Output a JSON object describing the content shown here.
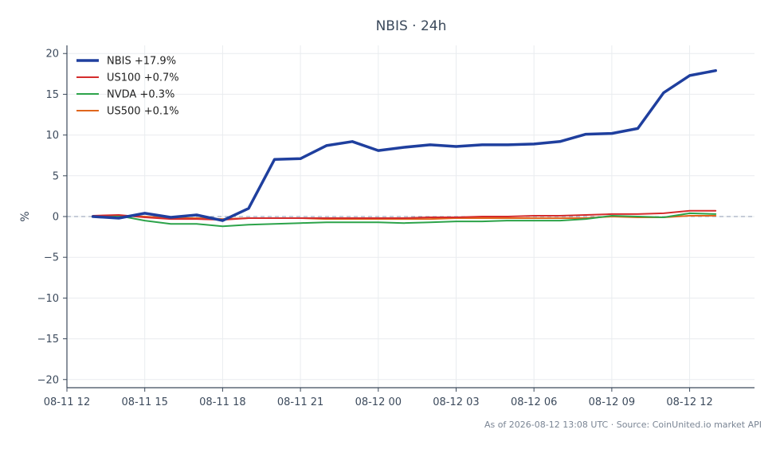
{
  "chart_data": {
    "type": "line",
    "title": "NBIS · 24h",
    "ylabel": "%",
    "xlabel": "",
    "ylim": [
      -21,
      21
    ],
    "yticks": [
      -20,
      -15,
      -10,
      -5,
      0,
      5,
      10,
      15,
      20
    ],
    "xlim": [
      0,
      26.5
    ],
    "xticks": [
      {
        "pos": 0,
        "label": "08-11 12"
      },
      {
        "pos": 3,
        "label": "08-11 15"
      },
      {
        "pos": 6,
        "label": "08-11 18"
      },
      {
        "pos": 9,
        "label": "08-11 21"
      },
      {
        "pos": 12,
        "label": "08-12 00"
      },
      {
        "pos": 15,
        "label": "08-12 03"
      },
      {
        "pos": 18,
        "label": "08-12 06"
      },
      {
        "pos": 21,
        "label": "08-12 09"
      },
      {
        "pos": 24,
        "label": "08-12 12"
      }
    ],
    "x": [
      1,
      2,
      3,
      4,
      5,
      6,
      7,
      8,
      9,
      10,
      11,
      12,
      13,
      14,
      15,
      16,
      17,
      18,
      19,
      20,
      21,
      22,
      23,
      24,
      25
    ],
    "grid": true,
    "zero_line": true,
    "legend_position": "top-left",
    "series": [
      {
        "name": "NBIS +17.9%",
        "color": "#1f3f9e",
        "width": 3.5,
        "values": [
          0.0,
          -0.2,
          0.4,
          -0.1,
          0.2,
          -0.5,
          1.0,
          7.0,
          7.1,
          8.7,
          9.2,
          8.1,
          8.5,
          8.8,
          8.6,
          8.8,
          8.8,
          8.9,
          9.2,
          10.1,
          10.2,
          10.8,
          15.2,
          17.3,
          17.9
        ]
      },
      {
        "name": "US100 +0.7%",
        "color": "#d42c2c",
        "width": 2,
        "values": [
          0.1,
          0.2,
          -0.1,
          -0.3,
          -0.3,
          -0.4,
          -0.2,
          -0.2,
          -0.2,
          -0.2,
          -0.2,
          -0.2,
          -0.2,
          -0.1,
          -0.1,
          0.0,
          0.0,
          0.1,
          0.1,
          0.2,
          0.3,
          0.3,
          0.4,
          0.7,
          0.7
        ]
      },
      {
        "name": "NVDA +0.3%",
        "color": "#2ca34a",
        "width": 2,
        "values": [
          0.0,
          0.1,
          -0.5,
          -0.9,
          -0.9,
          -1.2,
          -1.0,
          -0.9,
          -0.8,
          -0.7,
          -0.7,
          -0.7,
          -0.8,
          -0.7,
          -0.6,
          -0.6,
          -0.5,
          -0.5,
          -0.5,
          -0.3,
          0.1,
          0.0,
          -0.1,
          0.4,
          0.3
        ]
      },
      {
        "name": "US500 +0.1%",
        "color": "#e0661c",
        "width": 2,
        "values": [
          0.1,
          0.1,
          0.0,
          -0.2,
          -0.2,
          -0.3,
          -0.2,
          -0.2,
          -0.2,
          -0.3,
          -0.3,
          -0.3,
          -0.3,
          -0.3,
          -0.2,
          -0.2,
          -0.2,
          -0.2,
          -0.2,
          -0.2,
          0.0,
          -0.1,
          -0.1,
          0.1,
          0.1
        ]
      }
    ]
  },
  "footer": "As of 2026-08-12 13:08 UTC · Source: CoinUnited.io market API"
}
